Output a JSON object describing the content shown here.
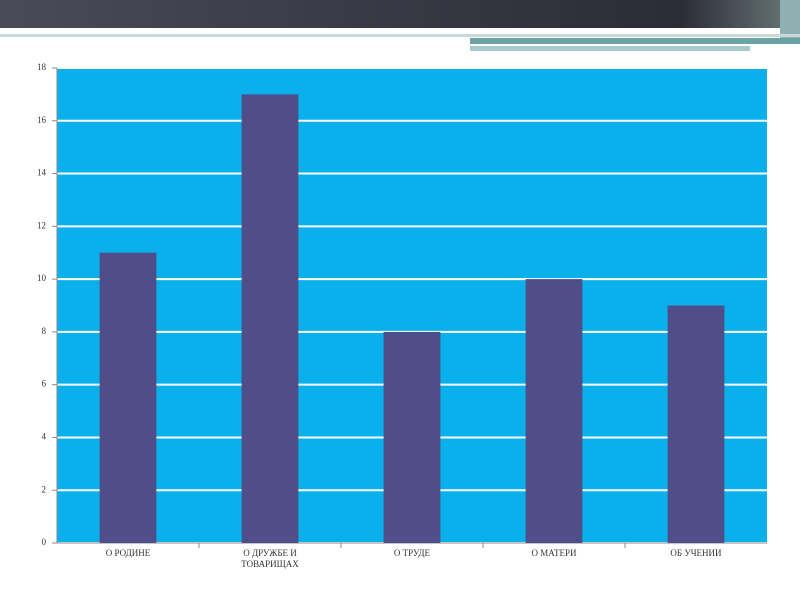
{
  "chart_data": {
    "type": "bar",
    "categories": [
      "О РОДИНЕ",
      "О ДРУЖБЕ И ТОВАРИЩАХ",
      "О ТРУДЕ",
      "О МАТЕРИ",
      "ОБ УЧЕНИИ"
    ],
    "values": [
      11,
      17,
      8,
      10,
      9
    ],
    "color": "#4f4e89",
    "ylim": [
      0,
      18
    ],
    "yticks": [
      0,
      2,
      4,
      6,
      8,
      10,
      12,
      14,
      16,
      18
    ],
    "grid": true
  }
}
